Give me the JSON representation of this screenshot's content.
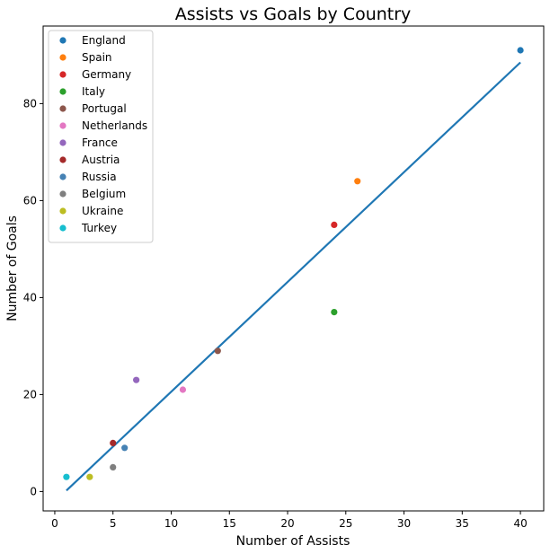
{
  "chart_data": {
    "type": "scatter",
    "title": "Assists vs Goals by Country",
    "xlabel": "Number of Assists",
    "ylabel": "Number of Goals",
    "xlim": [
      -1,
      42
    ],
    "ylim": [
      -4,
      96
    ],
    "x_ticks": [
      0,
      5,
      10,
      15,
      20,
      25,
      30,
      35,
      40
    ],
    "y_ticks": [
      0,
      20,
      40,
      60,
      80
    ],
    "grid": false,
    "legend_position": "top-left",
    "series": [
      {
        "name": "England",
        "x": 40,
        "y": 91,
        "color": "#1f77b4"
      },
      {
        "name": "Spain",
        "x": 26,
        "y": 64,
        "color": "#ff7f0e"
      },
      {
        "name": "Germany",
        "x": 24,
        "y": 55,
        "color": "#d62728"
      },
      {
        "name": "Italy",
        "x": 24,
        "y": 37,
        "color": "#2ca02c"
      },
      {
        "name": "Portugal",
        "x": 14,
        "y": 29,
        "color": "#8c564b"
      },
      {
        "name": "Netherlands",
        "x": 11,
        "y": 21,
        "color": "#e377c2"
      },
      {
        "name": "France",
        "x": 7,
        "y": 23,
        "color": "#9467bd"
      },
      {
        "name": "Austria",
        "x": 5,
        "y": 10,
        "color": "#a52a2a"
      },
      {
        "name": "Russia",
        "x": 6,
        "y": 9,
        "color": "#4682b4"
      },
      {
        "name": "Belgium",
        "x": 5,
        "y": 5,
        "color": "#7f7f7f"
      },
      {
        "name": "Ukraine",
        "x": 3,
        "y": 3,
        "color": "#bcbd22"
      },
      {
        "name": "Turkey",
        "x": 1,
        "y": 3,
        "color": "#17becf"
      }
    ],
    "trend_line": {
      "x": [
        1,
        40
      ],
      "y": [
        0.2,
        88.5
      ],
      "color": "#1f77b4"
    }
  }
}
